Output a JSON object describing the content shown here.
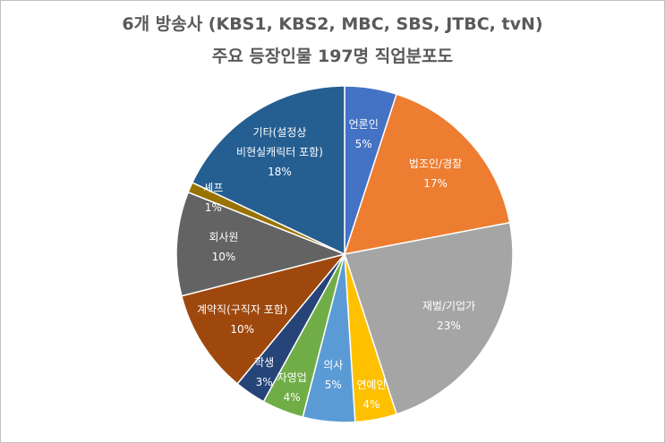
{
  "chart_data": {
    "type": "pie",
    "title": "6개 방송사 (KBS1, KBS2, MBC, SBS, JTBC, tvN)\n주요 등장인물 197명 직업분포도",
    "categories": [
      "언론인",
      "법조인/경찰",
      "재벌/기업가",
      "연예인",
      "의사",
      "자영업",
      "학생",
      "계약직(구직자 포함)",
      "회사원",
      "셰프",
      "기타(설정상\n비현실캐릭터 포함)"
    ],
    "values": [
      5,
      17,
      23,
      4,
      5,
      4,
      3,
      10,
      10,
      1,
      18
    ],
    "value_labels": [
      "5%",
      "17%",
      "23%",
      "4%",
      "5%",
      "4%",
      "3%",
      "10%",
      "10%",
      "1%",
      "18%"
    ],
    "colors": [
      "#4472c4",
      "#ed7d31",
      "#a5a5a5",
      "#ffc000",
      "#5b9bd5",
      "#70ad47",
      "#264478",
      "#9e480e",
      "#636363",
      "#997300",
      "#255e91"
    ]
  }
}
